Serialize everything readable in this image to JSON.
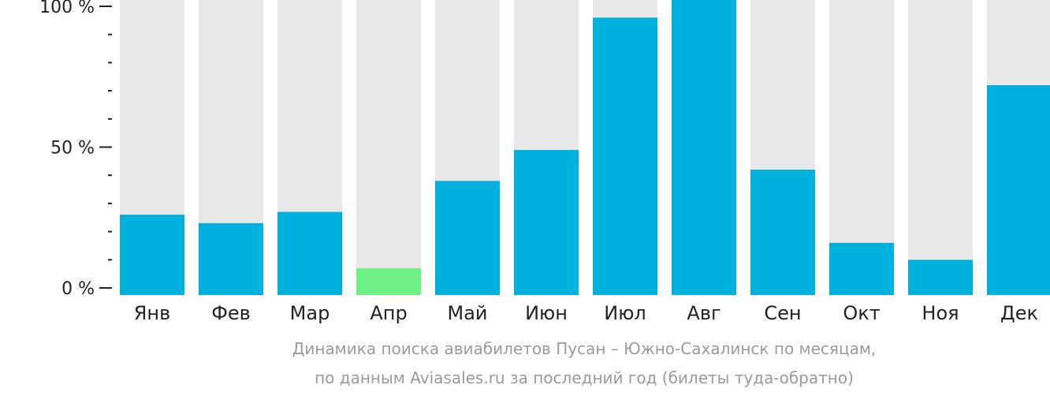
{
  "chart_data": {
    "type": "bar",
    "categories": [
      "Янв",
      "Фев",
      "Мар",
      "Апр",
      "Май",
      "Июн",
      "Июл",
      "Авг",
      "Сен",
      "Окт",
      "Ноя",
      "Дек"
    ],
    "values": [
      26,
      23,
      27,
      7,
      38,
      49,
      96,
      100,
      42,
      16,
      10,
      72
    ],
    "highlight_index": 3,
    "ylim": [
      0,
      100
    ],
    "y_ticks": [
      {
        "value": 100,
        "label": "100 %"
      },
      {
        "value": 50,
        "label": "50 %"
      },
      {
        "value": 0,
        "label": "0 %"
      }
    ],
    "y_minor_tick_step": 10,
    "title": "",
    "xlabel": "",
    "ylabel": "",
    "grid": false,
    "legend": "none",
    "colors": {
      "bar": "#00b0dd",
      "highlight": "#6ef084",
      "track": "#e8e8e8",
      "axis": "#222222",
      "caption": "#9a9a9a"
    }
  },
  "caption": {
    "line1": "Динамика поиска авиабилетов Пусан – Южно-Сахалинск по месяцам,",
    "line2": "по данным Aviasales.ru за последний год (билеты туда-обратно)"
  }
}
